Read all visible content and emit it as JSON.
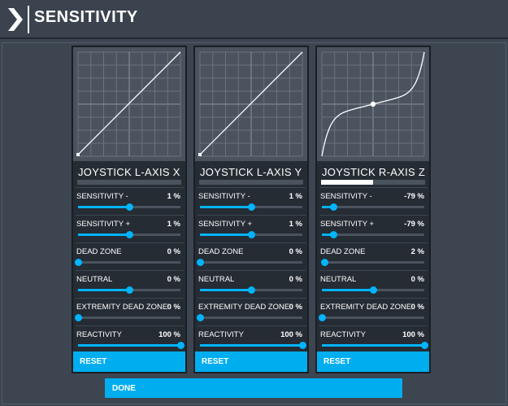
{
  "header": {
    "title": "SENSITIVITY"
  },
  "panels": [
    {
      "title": "JOYSTICK L-AXIS X",
      "axis_fill": 0,
      "curve": "linear",
      "reset_label": "RESET",
      "rows": [
        {
          "label": "SENSITIVITY -",
          "value": "1 %",
          "slider": 0.5
        },
        {
          "label": "SENSITIVITY +",
          "value": "1 %",
          "slider": 0.5
        },
        {
          "label": "DEAD ZONE",
          "value": "0 %",
          "slider": 0
        },
        {
          "label": "NEUTRAL",
          "value": "0 %",
          "slider": 0.5
        },
        {
          "label": "EXTREMITY DEAD ZONE",
          "value": "0 %",
          "slider": 0
        },
        {
          "label": "REACTIVITY",
          "value": "100 %",
          "slider": 1
        }
      ]
    },
    {
      "title": "JOYSTICK L-AXIS Y",
      "axis_fill": 0,
      "curve": "linear",
      "reset_label": "RESET",
      "rows": [
        {
          "label": "SENSITIVITY -",
          "value": "1 %",
          "slider": 0.5
        },
        {
          "label": "SENSITIVITY +",
          "value": "1 %",
          "slider": 0.5
        },
        {
          "label": "DEAD ZONE",
          "value": "0 %",
          "slider": 0
        },
        {
          "label": "NEUTRAL",
          "value": "0 %",
          "slider": 0.5
        },
        {
          "label": "EXTREMITY DEAD ZONE",
          "value": "0 %",
          "slider": 0
        },
        {
          "label": "REACTIVITY",
          "value": "100 %",
          "slider": 1
        }
      ]
    },
    {
      "title": "JOYSTICK R-AXIS Z",
      "axis_fill": 0.5,
      "curve": "cubic",
      "reset_label": "RESET",
      "rows": [
        {
          "label": "SENSITIVITY -",
          "value": "-79 %",
          "slider": 0.11
        },
        {
          "label": "SENSITIVITY +",
          "value": "-79 %",
          "slider": 0.11
        },
        {
          "label": "DEAD ZONE",
          "value": "2 %",
          "slider": 0.02
        },
        {
          "label": "NEUTRAL",
          "value": "0 %",
          "slider": 0.5
        },
        {
          "label": "EXTREMITY DEAD ZONE",
          "value": "0 %",
          "slider": 0
        },
        {
          "label": "REACTIVITY",
          "value": "100 %",
          "slider": 1
        }
      ]
    }
  ],
  "footer": {
    "done_label": "DONE"
  },
  "colors": {
    "accent": "#00aeef",
    "slider": "#00b4ff",
    "panel_bg": "#252c34",
    "page_bg": "#3c4550"
  }
}
